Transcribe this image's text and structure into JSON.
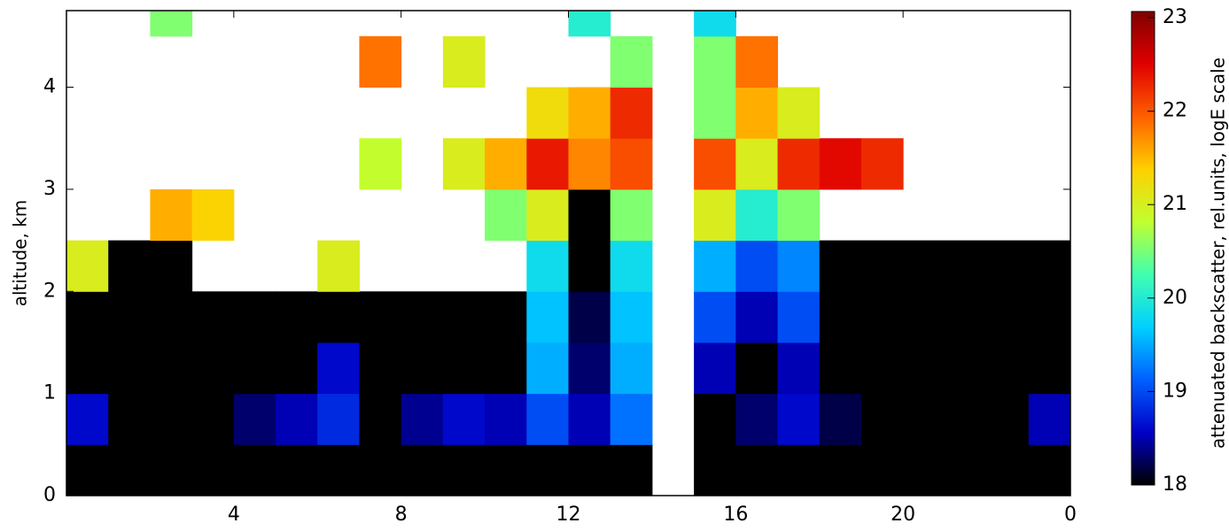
{
  "chart_data": {
    "type": "heatmap",
    "ylabel": "altitude, km",
    "x_edges": [
      0,
      1,
      2,
      3,
      4,
      5,
      6,
      7,
      8,
      9,
      10,
      11,
      12,
      13,
      14,
      15,
      16,
      17,
      18,
      19,
      20,
      21,
      22,
      23,
      24
    ],
    "y_edges": [
      0,
      0.5,
      1,
      1.5,
      2,
      2.5,
      3,
      3.5,
      4,
      4.5,
      4.75
    ],
    "values": [
      [
        18,
        18,
        18,
        18,
        18,
        18,
        18,
        18,
        18,
        18,
        18,
        18,
        18,
        18,
        null,
        18,
        18,
        18,
        18,
        18,
        18,
        18,
        18,
        18
      ],
      [
        18.6,
        18,
        18,
        18,
        18.3,
        18.5,
        18.8,
        18,
        18.4,
        18.6,
        18.5,
        19,
        18.5,
        19.2,
        null,
        18,
        18.3,
        18.6,
        18.2,
        18,
        18,
        18,
        18,
        18.5
      ],
      [
        18,
        18,
        18,
        18,
        18,
        18,
        18.6,
        18,
        18,
        18,
        18,
        19.5,
        18.3,
        19.5,
        null,
        18.5,
        18,
        18.5,
        18,
        18,
        18,
        18,
        18,
        18
      ],
      [
        18,
        18,
        18,
        18,
        18,
        18,
        18,
        18,
        18,
        18,
        18,
        19.6,
        18.2,
        19.6,
        null,
        19,
        18.5,
        19,
        18,
        18,
        18,
        18,
        18,
        18
      ],
      [
        21,
        18,
        18,
        null,
        null,
        null,
        21,
        null,
        null,
        null,
        null,
        19.8,
        18,
        19.8,
        null,
        19.5,
        19,
        19.3,
        18,
        18,
        18,
        18,
        18,
        18
      ],
      [
        null,
        null,
        21.5,
        21.3,
        null,
        null,
        null,
        null,
        null,
        null,
        20.5,
        21,
        18,
        20.5,
        null,
        21,
        20,
        20.5,
        null,
        null,
        null,
        null,
        null,
        null
      ],
      [
        null,
        null,
        null,
        null,
        null,
        null,
        null,
        20.8,
        null,
        21,
        21.5,
        22.3,
        21.7,
        22,
        null,
        22,
        21,
        22.2,
        22.4,
        22.2,
        null,
        null,
        null,
        null
      ],
      [
        null,
        null,
        null,
        null,
        null,
        null,
        null,
        null,
        null,
        null,
        null,
        21.2,
        21.5,
        22.2,
        null,
        20.5,
        21.5,
        21,
        null,
        null,
        null,
        null,
        null,
        null
      ],
      [
        null,
        null,
        null,
        null,
        null,
        null,
        null,
        21.8,
        null,
        21,
        null,
        null,
        null,
        20.5,
        null,
        20.5,
        21.8,
        null,
        null,
        null,
        null,
        null,
        null,
        null
      ],
      [
        null,
        null,
        20.5,
        null,
        null,
        null,
        null,
        null,
        null,
        null,
        null,
        null,
        20,
        null,
        null,
        19.8,
        null,
        null,
        null,
        null,
        null,
        null,
        null,
        null
      ]
    ],
    "xlim": [
      0,
      24
    ],
    "xticks": [
      4,
      8,
      12,
      16,
      20,
      {
        "value": 24,
        "label": "0"
      }
    ],
    "ylim": [
      0,
      4.75
    ],
    "yticks": [
      0,
      1,
      2,
      3,
      4
    ],
    "colorbar_label": "attenuated backscatter, rel.units, logE scale",
    "clim": [
      18,
      23
    ],
    "cticks": [
      18,
      19,
      20,
      21,
      22,
      23
    ],
    "colormap": [
      "#000000",
      "#0000c8",
      "#0060ff",
      "#00d0ff",
      "#40ffb0",
      "#c0ff30",
      "#ffd000",
      "#ff6000",
      "#e00000",
      "#800000"
    ]
  }
}
